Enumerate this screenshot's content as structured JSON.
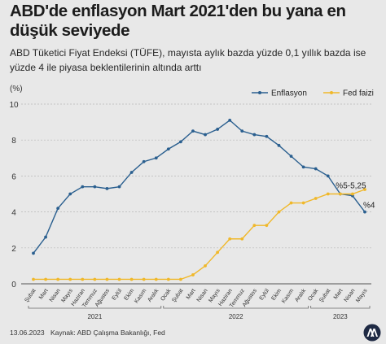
{
  "headline": "ABD'de enflasyon Mart 2021'den bu yana en düşük seviyede",
  "subtitle": "ABD Tüketici Fiyat Endeksi (TÜFE), mayısta aylık bazda yüzde 0,1 yıllık bazda ise yüzde 4 ile piyasa beklentilerinin altında arttı",
  "footer": {
    "date": "13.06.2023",
    "source": "Kaynak: ABD Çalışma Bakanlığı, Fed"
  },
  "colors": {
    "inflation": "#2a5f8f",
    "fed": "#f0b82a",
    "grid": "#b8b8b8",
    "axis": "#555555",
    "background": "#e8e8e8"
  },
  "chart_data": {
    "type": "line",
    "title": "",
    "ylabel": "(%)",
    "ylim": [
      0,
      10
    ],
    "yticks": [
      0,
      2,
      4,
      6,
      8,
      10
    ],
    "grid": true,
    "legend_position": "top-right",
    "categories": [
      "Şubat",
      "Mart",
      "Nisan",
      "Mayıs",
      "Haziran",
      "Temmuz",
      "Ağustos",
      "Eylül",
      "Ekim",
      "Kasım",
      "Aralık",
      "Ocak",
      "Şubat",
      "Mart",
      "Nisan",
      "Mayıs",
      "Haziran",
      "Temmuz",
      "Ağustos",
      "Eylül",
      "Ekim",
      "Kasım",
      "Aralık",
      "Ocak",
      "Şubat",
      "Mart",
      "Nisan",
      "Mayıs"
    ],
    "year_groups": [
      {
        "label": "2021",
        "start": 0,
        "end": 10
      },
      {
        "label": "2022",
        "start": 11,
        "end": 22
      },
      {
        "label": "2023",
        "start": 23,
        "end": 27
      }
    ],
    "series": [
      {
        "name": "Enflasyon",
        "color": "#2a5f8f",
        "values": [
          1.7,
          2.6,
          4.2,
          5.0,
          5.4,
          5.4,
          5.3,
          5.4,
          6.2,
          6.8,
          7.0,
          7.5,
          7.9,
          8.5,
          8.3,
          8.6,
          9.1,
          8.5,
          8.3,
          8.2,
          7.7,
          7.1,
          6.5,
          6.4,
          6.0,
          5.0,
          4.9,
          4.0
        ]
      },
      {
        "name": "Fed faizi",
        "color": "#f0b82a",
        "values": [
          0.25,
          0.25,
          0.25,
          0.25,
          0.25,
          0.25,
          0.25,
          0.25,
          0.25,
          0.25,
          0.25,
          0.25,
          0.25,
          0.5,
          1.0,
          1.75,
          2.5,
          2.5,
          3.25,
          3.25,
          4.0,
          4.5,
          4.5,
          4.75,
          5.0,
          5.0,
          5.0,
          5.25
        ]
      }
    ],
    "annotations": [
      {
        "text": "%5-5,25",
        "series": 1,
        "index": 26
      },
      {
        "text": "%4",
        "series": 0,
        "index": 27
      }
    ]
  }
}
